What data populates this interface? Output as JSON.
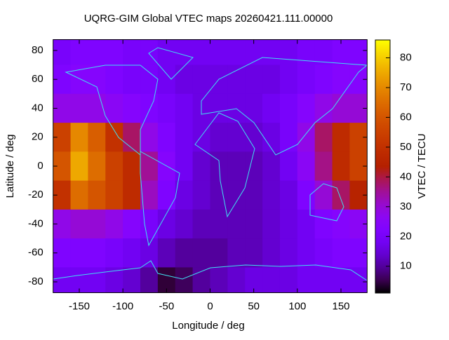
{
  "chart_data": {
    "type": "heatmap",
    "title": "UQRG-GIM Global VTEC maps 20260421.111.00000",
    "xlabel": "Longitude / deg",
    "ylabel": "Latitude / deg",
    "colorbar_label": "VTEC / TECU",
    "x": [
      -170,
      -150,
      -130,
      -110,
      -90,
      -70,
      -50,
      -30,
      -10,
      10,
      30,
      50,
      70,
      90,
      110,
      130,
      150,
      170
    ],
    "y": [
      80,
      60,
      40,
      20,
      0,
      -20,
      -40,
      -60,
      -80
    ],
    "z": [
      [
        20,
        22,
        22,
        22,
        20,
        20,
        18,
        18,
        18,
        18,
        18,
        18,
        18,
        18,
        20,
        20,
        22,
        22
      ],
      [
        22,
        24,
        24,
        22,
        20,
        20,
        18,
        16,
        16,
        16,
        16,
        16,
        16,
        18,
        20,
        22,
        24,
        24
      ],
      [
        28,
        28,
        28,
        26,
        24,
        22,
        20,
        18,
        16,
        16,
        16,
        16,
        18,
        20,
        24,
        28,
        30,
        30
      ],
      [
        55,
        70,
        62,
        50,
        38,
        28,
        22,
        18,
        16,
        14,
        14,
        14,
        16,
        20,
        28,
        38,
        48,
        55
      ],
      [
        60,
        75,
        65,
        55,
        48,
        35,
        24,
        18,
        14,
        12,
        12,
        12,
        14,
        18,
        26,
        36,
        48,
        55
      ],
      [
        50,
        65,
        60,
        55,
        48,
        32,
        22,
        16,
        14,
        12,
        12,
        12,
        14,
        16,
        22,
        30,
        38,
        45
      ],
      [
        28,
        30,
        30,
        28,
        24,
        20,
        16,
        14,
        12,
        12,
        12,
        12,
        14,
        16,
        18,
        22,
        24,
        26
      ],
      [
        22,
        22,
        22,
        20,
        18,
        16,
        12,
        10,
        10,
        10,
        12,
        12,
        14,
        16,
        18,
        20,
        22,
        22
      ],
      [
        18,
        18,
        18,
        16,
        14,
        10,
        4,
        6,
        10,
        12,
        14,
        16,
        16,
        16,
        18,
        18,
        18,
        18
      ]
    ],
    "cell_size": 20,
    "xlim": [
      -180,
      180
    ],
    "ylim": [
      -87.5,
      87.5
    ],
    "xticks": [
      -150,
      -100,
      -50,
      0,
      50,
      100,
      150
    ],
    "yticks": [
      -80,
      -60,
      -40,
      -20,
      0,
      20,
      40,
      60,
      80
    ],
    "clim": [
      1,
      86
    ],
    "cticks": [
      10,
      20,
      30,
      40,
      50,
      60,
      70,
      80
    ],
    "palette": "rgbformulae 7,5,15"
  }
}
